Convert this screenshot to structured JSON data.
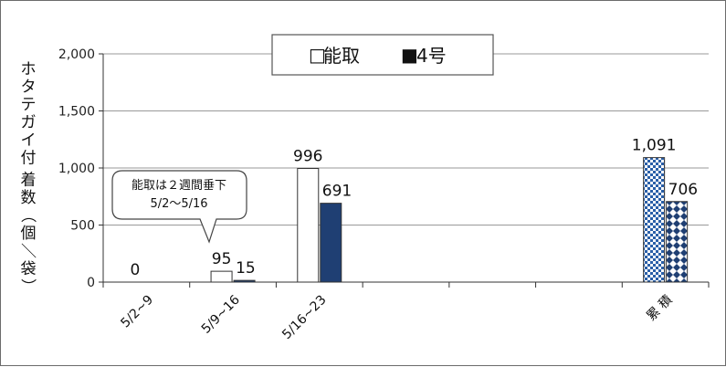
{
  "chart_data": {
    "type": "bar",
    "ylabel": "ホタテガイ付着数（個／袋）",
    "ylim": [
      0,
      2000
    ],
    "yticks": [
      "0",
      "500",
      "1,000",
      "1,500",
      "2,000"
    ],
    "categories": [
      "5/2~9",
      "5/9~16",
      "5/16~23",
      "",
      "",
      "",
      "累 積"
    ],
    "series": [
      {
        "name": "能取",
        "values": [
          0,
          95,
          996,
          null,
          null,
          null,
          1091
        ],
        "labels": [
          "0",
          "95",
          "996",
          "",
          "",
          "",
          "1,091"
        ],
        "color": "#ffffff"
      },
      {
        "name": "4号",
        "values": [
          null,
          15,
          691,
          null,
          null,
          null,
          706
        ],
        "labels": [
          "",
          "15",
          "691",
          "",
          "",
          "",
          "706"
        ],
        "color": "#1f3f73"
      }
    ],
    "legend": {
      "position": "top",
      "markers": [
        "□",
        "■"
      ]
    },
    "callout": {
      "line1": "能取は２週間垂下",
      "line2": "5/2～5/16"
    },
    "grid": true
  }
}
